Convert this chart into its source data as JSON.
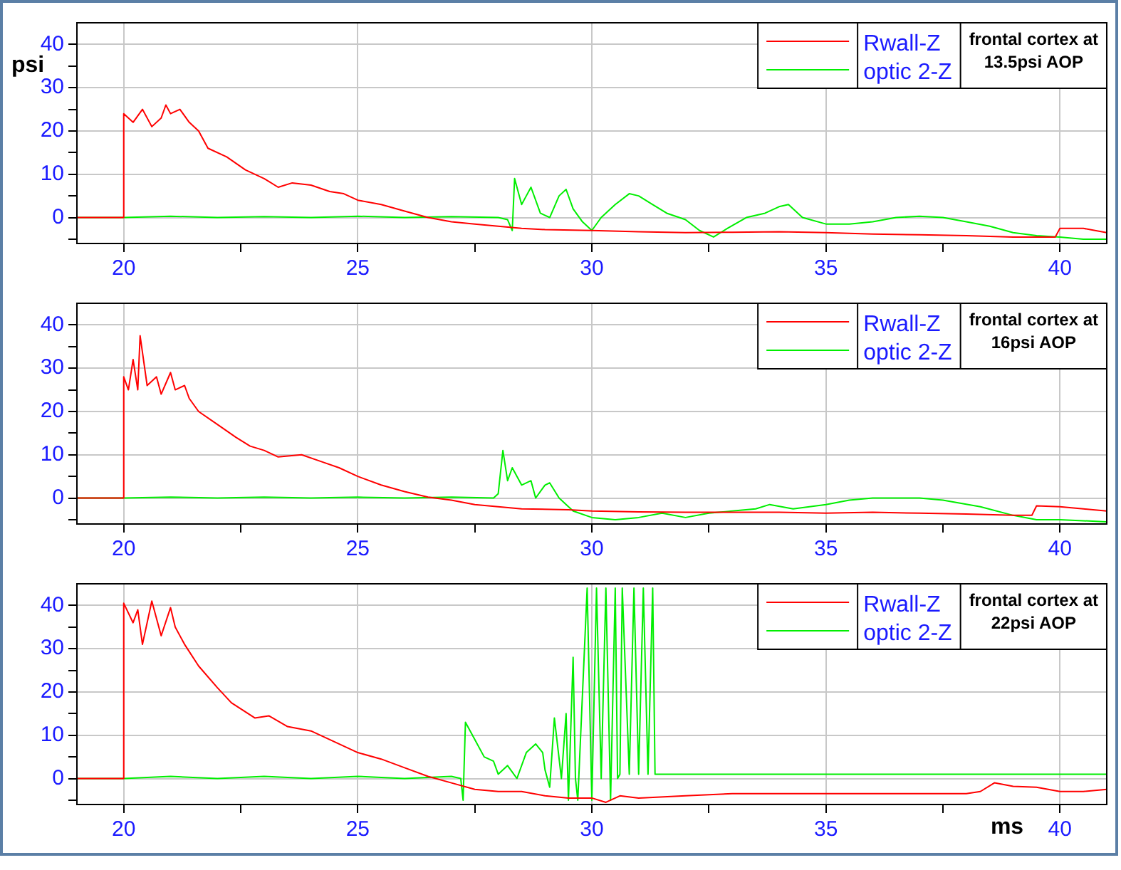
{
  "chart_data": [
    {
      "type": "line",
      "ylabel": "psi",
      "annotations": [
        "frontal cortex at 13.5psi AOP"
      ],
      "legend": "top right",
      "grid": true,
      "marker": "none",
      "line_style": "solid",
      "xlim": [
        19,
        41
      ],
      "xticks": [
        20,
        {
          "value": 22.5,
          "label": null
        },
        25,
        {
          "value": 27.5,
          "label": null
        },
        30,
        {
          "value": 32.5,
          "label": null
        },
        35,
        {
          "value": 37.5,
          "label": null
        },
        40
      ],
      "ylim": [
        -6,
        45
      ],
      "yticks": [
        {
          "value": -5,
          "label": null
        },
        0,
        {
          "value": 5,
          "label": null
        },
        10,
        {
          "value": 15,
          "label": null
        },
        20,
        {
          "value": 25,
          "label": null
        },
        30,
        {
          "value": 35,
          "label": null
        },
        40
      ],
      "series": [
        {
          "name": "Rwall-Z",
          "color": "#ff0000",
          "x": [
            19,
            20,
            20,
            20.2,
            20.4,
            20.6,
            20.8,
            20.9,
            21,
            21.2,
            21.4,
            21.6,
            21.8,
            22.2,
            22.6,
            23,
            23.3,
            23.6,
            24,
            24.4,
            24.7,
            25,
            25.5,
            26,
            26.5,
            27,
            27.5,
            28,
            28.5,
            29,
            30,
            31,
            32,
            33,
            34,
            35,
            36,
            37,
            38,
            39,
            39.9,
            40,
            40.5,
            41
          ],
          "values": [
            0,
            0,
            24,
            22,
            25,
            21,
            23,
            26,
            24,
            25,
            22,
            20,
            16,
            14,
            11,
            9,
            7,
            8,
            7.5,
            6,
            5.5,
            4,
            3,
            1.5,
            0,
            -1,
            -1.5,
            -2,
            -2.5,
            -2.8,
            -3,
            -3.3,
            -3.5,
            -3.4,
            -3.3,
            -3.5,
            -3.8,
            -4,
            -4.2,
            -4.5,
            -4.5,
            -2.5,
            -2.5,
            -3.5
          ]
        },
        {
          "name": "optic 2-Z",
          "color": "#00ee00",
          "x": [
            19,
            20,
            21,
            22,
            23,
            24,
            25,
            26,
            27,
            28,
            28.2,
            28.3,
            28.35,
            28.5,
            28.6,
            28.7,
            28.9,
            29.1,
            29.3,
            29.45,
            29.6,
            29.8,
            30,
            30.2,
            30.5,
            30.8,
            31,
            31.3,
            31.6,
            32,
            32.3,
            32.6,
            32.9,
            33.3,
            33.7,
            34,
            34.2,
            34.5,
            35,
            35.5,
            36,
            36.5,
            37,
            37.5,
            38,
            38.5,
            39,
            39.5,
            40,
            40.5,
            41
          ],
          "values": [
            0,
            0,
            0.3,
            0,
            0.2,
            0,
            0.3,
            0,
            0.2,
            0,
            -0.5,
            -3,
            9,
            3,
            5,
            7,
            1,
            0,
            5,
            6.5,
            2,
            -1,
            -3,
            0,
            3,
            5.5,
            5,
            3,
            1,
            -0.5,
            -3,
            -4.5,
            -2.5,
            0,
            1,
            2.5,
            3,
            0,
            -1.5,
            -1.5,
            -1,
            0,
            0.3,
            0,
            -1,
            -2,
            -3.5,
            -4.2,
            -4.5,
            -5,
            -5
          ]
        }
      ]
    },
    {
      "type": "line",
      "annotations": [
        "frontal cortex at 16psi AOP"
      ],
      "legend": "top right",
      "grid": true,
      "marker": "none",
      "line_style": "solid",
      "xlim": [
        19,
        41
      ],
      "xticks": [
        20,
        {
          "value": 22.5,
          "label": null
        },
        25,
        {
          "value": 27.5,
          "label": null
        },
        30,
        {
          "value": 32.5,
          "label": null
        },
        35,
        {
          "value": 37.5,
          "label": null
        },
        40
      ],
      "ylim": [
        -6,
        45
      ],
      "yticks": [
        {
          "value": -5,
          "label": null
        },
        0,
        {
          "value": 5,
          "label": null
        },
        10,
        {
          "value": 15,
          "label": null
        },
        20,
        {
          "value": 25,
          "label": null
        },
        30,
        {
          "value": 35,
          "label": null
        },
        40
      ],
      "series": [
        {
          "name": "Rwall-Z",
          "color": "#ff0000",
          "x": [
            19,
            20,
            20,
            20.1,
            20.2,
            20.3,
            20.35,
            20.5,
            20.7,
            20.8,
            21,
            21.1,
            21.3,
            21.4,
            21.6,
            22,
            22.4,
            22.7,
            23,
            23.3,
            23.8,
            24.2,
            24.6,
            25,
            25.5,
            26,
            26.5,
            27,
            27.5,
            28,
            28.5,
            29.5,
            30,
            31,
            32,
            33,
            34,
            35,
            36,
            37,
            38,
            39,
            39.4,
            39.5,
            40,
            40.5,
            41
          ],
          "values": [
            0,
            0,
            28,
            25,
            32,
            25,
            37.5,
            26,
            28,
            24,
            29,
            25,
            26,
            23,
            20,
            17,
            14,
            12,
            11,
            9.5,
            10,
            8.5,
            7,
            5,
            3,
            1.5,
            0.2,
            -0.5,
            -1.5,
            -2,
            -2.5,
            -2.7,
            -3,
            -3.2,
            -3.3,
            -3.3,
            -3.3,
            -3.5,
            -3.3,
            -3.5,
            -3.7,
            -4,
            -4,
            -1.8,
            -2,
            -2.5,
            -3
          ]
        },
        {
          "name": "optic 2-Z",
          "color": "#00ee00",
          "x": [
            19,
            20,
            21,
            22,
            23,
            24,
            25,
            26,
            27,
            27.9,
            28,
            28.1,
            28.2,
            28.3,
            28.5,
            28.7,
            28.8,
            29,
            29.1,
            29.3,
            29.6,
            30,
            30.5,
            31,
            31.5,
            32,
            32.5,
            33,
            33.5,
            33.8,
            34.3,
            35,
            35.5,
            36,
            37,
            37.5,
            38.3,
            39,
            39.5,
            40,
            41
          ],
          "values": [
            0,
            0,
            0.2,
            0,
            0.2,
            0,
            0.2,
            0,
            0.2,
            0,
            1,
            11,
            4,
            7,
            3,
            4,
            0,
            3,
            3.5,
            0,
            -3,
            -4.5,
            -5,
            -4.5,
            -3.5,
            -4.5,
            -3.5,
            -3,
            -2.5,
            -1.5,
            -2.5,
            -1.5,
            -0.5,
            0,
            0,
            -0.5,
            -2,
            -4,
            -5,
            -5,
            -5.5
          ]
        }
      ]
    },
    {
      "type": "line",
      "xlabel": "ms",
      "annotations": [
        "frontal cortex at 22psi AOP"
      ],
      "legend": "top right",
      "grid": true,
      "marker": "none",
      "line_style": "solid",
      "xlim": [
        19,
        41
      ],
      "xticks": [
        20,
        {
          "value": 22.5,
          "label": null
        },
        25,
        {
          "value": 27.5,
          "label": null
        },
        30,
        {
          "value": 32.5,
          "label": null
        },
        35,
        {
          "value": 37.5,
          "label": null
        },
        40
      ],
      "ylim": [
        -6,
        45
      ],
      "yticks": [
        {
          "value": -5,
          "label": null
        },
        0,
        {
          "value": 5,
          "label": null
        },
        10,
        {
          "value": 15,
          "label": null
        },
        20,
        {
          "value": 25,
          "label": null
        },
        30,
        {
          "value": 35,
          "label": null
        },
        40
      ],
      "series": [
        {
          "name": "Rwall-Z",
          "color": "#ff0000",
          "x": [
            19,
            20,
            20,
            20.2,
            20.3,
            20.4,
            20.6,
            20.8,
            21,
            21.1,
            21.3,
            21.6,
            22,
            22.3,
            22.8,
            23.1,
            23.5,
            24,
            24.5,
            25,
            25.5,
            26,
            26.5,
            27,
            27.5,
            28,
            28.5,
            29,
            29.5,
            30,
            30.3,
            30.6,
            31,
            32,
            33,
            34,
            35,
            36,
            37,
            38,
            38.3,
            38.6,
            39,
            39.5,
            40,
            40.5,
            41
          ],
          "values": [
            0,
            0,
            40.5,
            36,
            39,
            31,
            41,
            33,
            39.5,
            35,
            31,
            26,
            21,
            17.5,
            14,
            14.5,
            12,
            11,
            8.5,
            6,
            4.5,
            2.5,
            0.5,
            -1,
            -2.5,
            -3,
            -3,
            -4,
            -4.5,
            -4.5,
            -5.5,
            -4,
            -4.5,
            -4,
            -3.5,
            -3.5,
            -3.5,
            -3.5,
            -3.5,
            -3.5,
            -3,
            -1,
            -1.8,
            -2,
            -3,
            -3,
            -2.5
          ]
        },
        {
          "name": "optic 2-Z",
          "color": "#00ee00",
          "x": [
            19,
            20,
            21,
            22,
            23,
            24,
            25,
            26,
            27,
            27.2,
            27.25,
            27.3,
            27.5,
            27.7,
            27.9,
            28,
            28.2,
            28.4,
            28.6,
            28.8,
            28.95,
            29,
            29.1,
            29.2,
            29.35,
            29.45,
            29.5,
            29.6,
            29.65,
            29.7,
            29.9,
            30,
            30.1,
            30.2,
            30.3,
            30.4,
            30.5,
            30.55,
            30.6,
            30.65,
            30.8,
            30.9,
            31,
            31.1,
            31.2,
            31.3,
            31.35,
            41
          ],
          "values": [
            0,
            0,
            0.5,
            0,
            0.5,
            0,
            0.5,
            0,
            0.5,
            0,
            -5,
            13,
            9,
            5,
            4,
            1,
            3,
            0,
            6,
            8,
            6,
            2,
            -2,
            14,
            0,
            15,
            -5,
            28,
            0,
            -5,
            44,
            -5,
            44,
            0,
            44,
            -5,
            44,
            0,
            1,
            44,
            1,
            44,
            1,
            44,
            1,
            44,
            1,
            1
          ]
        }
      ]
    }
  ]
}
